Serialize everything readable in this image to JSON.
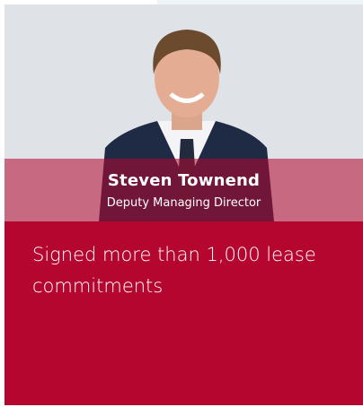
{
  "profile": {
    "name": "Steven Townend",
    "role": "Deputy Managing Director"
  },
  "highlight": "Signed more than 1,000 lease commitments"
}
